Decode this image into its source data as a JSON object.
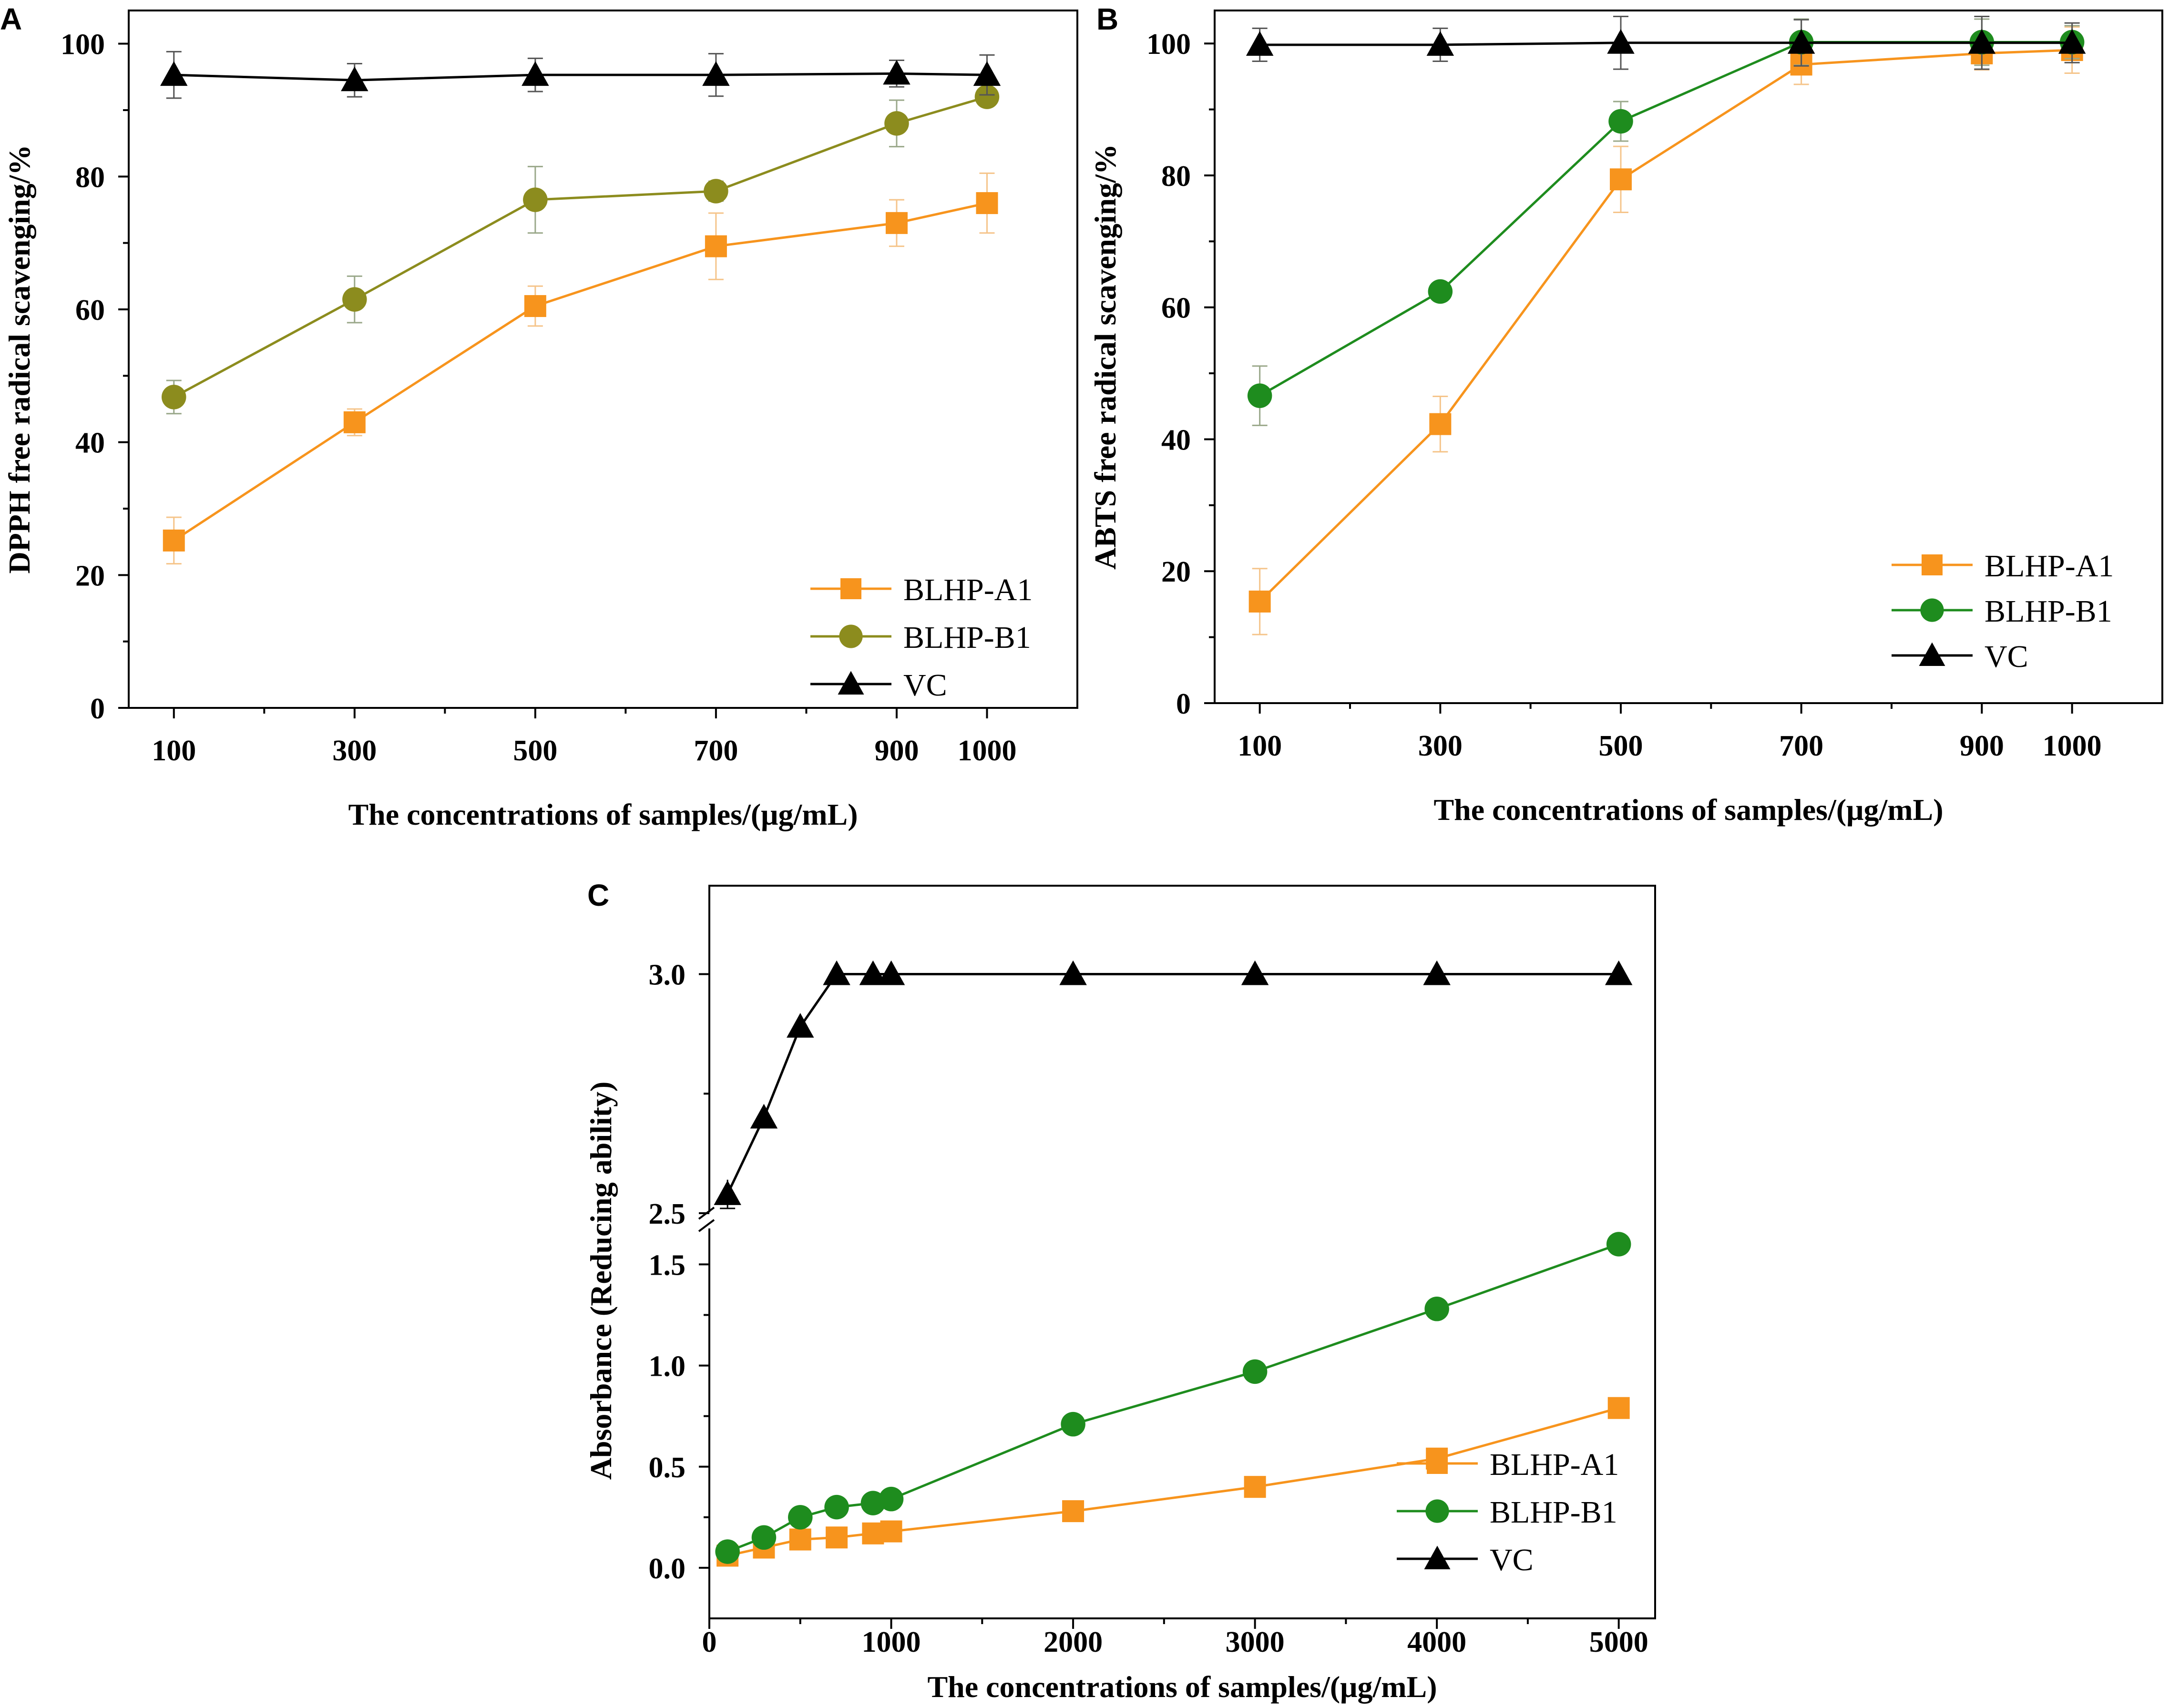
{
  "chart_data": [
    {
      "panel": "A",
      "type": "line",
      "xlabel": "The concentrations of samples/(μg/mL)",
      "ylabel": "DPPH free radical scavenging/%",
      "xlim": [
        50,
        1100
      ],
      "ylim": [
        0,
        105
      ],
      "xticks": [
        100,
        300,
        500,
        700,
        900,
        1000
      ],
      "yticks": [
        0,
        20,
        40,
        60,
        80,
        100
      ],
      "x": [
        100,
        300,
        500,
        700,
        900,
        1000
      ],
      "legend_position": "bottom-right",
      "series": [
        {
          "name": "BLHP-A1",
          "marker": "square",
          "color": "#f7941d",
          "values": [
            25.2,
            43.0,
            60.5,
            69.5,
            73.0,
            76.0
          ],
          "errors": [
            3.5,
            2.0,
            3.0,
            5.0,
            3.5,
            4.5
          ]
        },
        {
          "name": "BLHP-B1",
          "marker": "circle",
          "color": "#8c8c1e",
          "values": [
            46.8,
            61.5,
            76.5,
            77.8,
            88.0,
            92.0
          ],
          "errors": [
            2.5,
            3.5,
            5.0,
            1.5,
            3.5,
            1.0
          ]
        },
        {
          "name": "VC",
          "marker": "triangle",
          "color": "#000000",
          "values": [
            95.3,
            94.5,
            95.3,
            95.3,
            95.5,
            95.3
          ],
          "errors": [
            3.5,
            2.5,
            2.5,
            3.2,
            2.0,
            3.0
          ]
        }
      ]
    },
    {
      "panel": "B",
      "type": "line",
      "xlabel": "The concentrations of samples/(μg/mL)",
      "ylabel": "ABTS free radical scavenging/%",
      "xlim": [
        50,
        1100
      ],
      "ylim": [
        0,
        105
      ],
      "xticks": [
        100,
        300,
        500,
        700,
        900,
        1000
      ],
      "yticks": [
        0,
        20,
        40,
        60,
        80,
        100
      ],
      "x": [
        100,
        300,
        500,
        700,
        900,
        1000
      ],
      "legend_position": "bottom-right",
      "series": [
        {
          "name": "BLHP-A1",
          "marker": "square",
          "color": "#f7941d",
          "values": [
            15.4,
            42.3,
            79.4,
            96.8,
            98.5,
            99.0
          ],
          "errors": [
            5.0,
            4.2,
            5.0,
            3.0,
            2.5,
            3.5
          ]
        },
        {
          "name": "BLHP-B1",
          "marker": "circle",
          "color": "#1e8c1e",
          "values": [
            46.6,
            62.4,
            88.2,
            100.2,
            100.2,
            100.2
          ],
          "errors": [
            4.5,
            1.0,
            3.0,
            3.5,
            3.5,
            2.5
          ]
        },
        {
          "name": "VC",
          "marker": "triangle",
          "color": "#000000",
          "values": [
            99.8,
            99.8,
            100.1,
            100.1,
            100.1,
            100.1
          ],
          "errors": [
            2.5,
            2.5,
            4.0,
            3.5,
            4.0,
            3.0
          ]
        }
      ]
    },
    {
      "panel": "C",
      "type": "line",
      "xlabel": "The concentrations of samples/(μg/mL)",
      "ylabel": "Absorbance (Reducing ability)",
      "xlim": [
        0,
        5200
      ],
      "ylim_lower": [
        -0.25,
        1.6
      ],
      "ylim_upper": [
        2.5,
        3.15
      ],
      "axis_break": [
        1.6,
        2.5
      ],
      "xticks": [
        0,
        1000,
        2000,
        3000,
        4000,
        5000
      ],
      "yticks": [
        0.0,
        0.5,
        1.0,
        1.5,
        2.5,
        3.0
      ],
      "x": [
        100,
        300,
        500,
        700,
        900,
        1000,
        2000,
        3000,
        4000,
        5000
      ],
      "legend_position": "bottom-right",
      "series": [
        {
          "name": "BLHP-A1",
          "marker": "square",
          "color": "#f7941d",
          "values": [
            0.06,
            0.1,
            0.14,
            0.15,
            0.17,
            0.18,
            0.28,
            0.4,
            0.54,
            0.79
          ]
        },
        {
          "name": "BLHP-B1",
          "marker": "circle",
          "color": "#1e8c1e",
          "values": [
            0.08,
            0.15,
            0.25,
            0.3,
            0.32,
            0.34,
            0.71,
            0.97,
            1.28,
            1.6
          ]
        },
        {
          "name": "VC",
          "marker": "triangle",
          "color": "#000000",
          "values": [
            2.54,
            2.7,
            2.89,
            3.0,
            3.0,
            3.0,
            3.0,
            3.0,
            3.0,
            3.0
          ],
          "errors": [
            0.03,
            0.02,
            0.02,
            0,
            0,
            0,
            0,
            0,
            0,
            0
          ]
        }
      ]
    }
  ]
}
